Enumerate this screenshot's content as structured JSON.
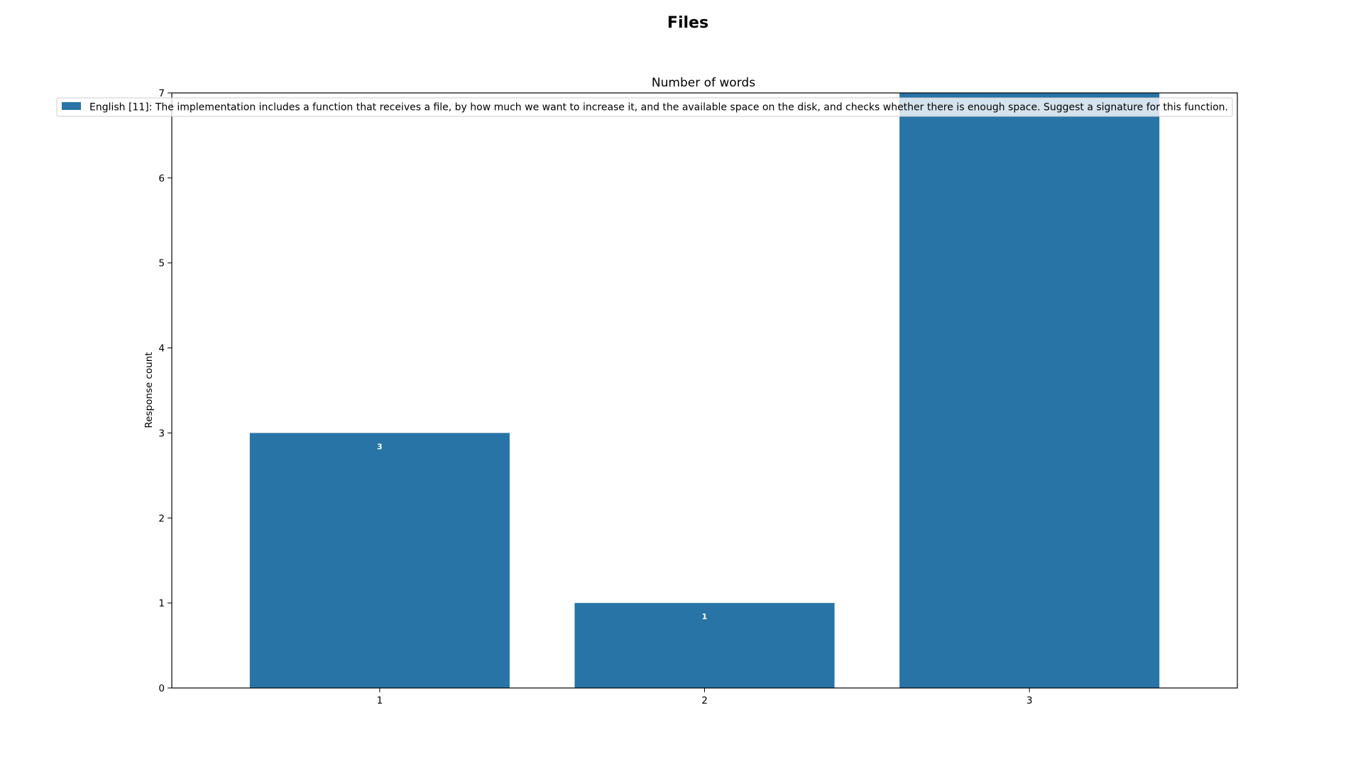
{
  "figure": {
    "title": "Files"
  },
  "chart_data": {
    "type": "bar",
    "title": "Number of words",
    "xlabel": "",
    "ylabel": "Response count",
    "categories": [
      "1",
      "2",
      "3"
    ],
    "series": [
      {
        "name": "English [11]: The implementation includes a function that receives a file, by how much we want to increase it, and the available space on the disk, and checks whether there is enough space. Suggest a signature for this function.",
        "values": [
          3,
          1,
          7
        ],
        "color": "#2874a6"
      }
    ],
    "data_labels": [
      "3",
      "1",
      ""
    ],
    "ylim": [
      0,
      7
    ],
    "yticks": [
      0,
      1,
      2,
      3,
      4,
      5,
      6,
      7
    ],
    "grid": false,
    "legend_position": "top"
  }
}
